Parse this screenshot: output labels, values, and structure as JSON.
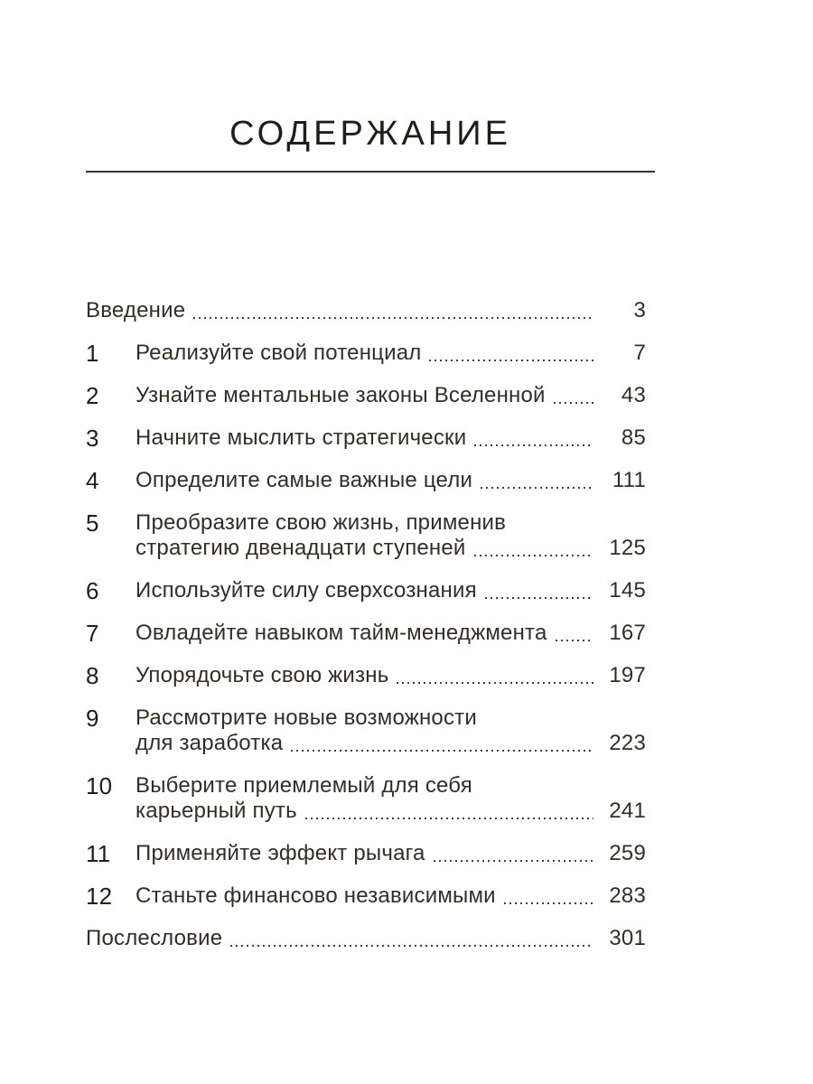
{
  "page": {
    "title": "СОДЕРЖАНИЕ"
  },
  "toc": {
    "entries": [
      {
        "num": "",
        "lines": [
          "Введение"
        ],
        "page": "3"
      },
      {
        "num": "1",
        "lines": [
          "Реализуйте свой потенциал"
        ],
        "page": "7"
      },
      {
        "num": "2",
        "lines": [
          "Узнайте ментальные законы Вселенной"
        ],
        "page": "43"
      },
      {
        "num": "3",
        "lines": [
          "Начните мыслить стратегически"
        ],
        "page": "85"
      },
      {
        "num": "4",
        "lines": [
          "Определите самые важные цели"
        ],
        "page": "111"
      },
      {
        "num": "5",
        "lines": [
          "Преобразите свою жизнь, применив",
          "стратегию двенадцати ступеней"
        ],
        "page": "125"
      },
      {
        "num": "6",
        "lines": [
          "Используйте силу сверхсознания"
        ],
        "page": "145"
      },
      {
        "num": "7",
        "lines": [
          "Овладейте навыком тайм-менеджмента"
        ],
        "page": "167"
      },
      {
        "num": "8",
        "lines": [
          "Упорядочьте свою жизнь"
        ],
        "page": "197"
      },
      {
        "num": "9",
        "lines": [
          "Рассмотрите новые возможности",
          "для заработка"
        ],
        "page": "223"
      },
      {
        "num": "10",
        "lines": [
          "Выберите приемлемый для себя",
          "карьерный путь"
        ],
        "page": "241"
      },
      {
        "num": "11",
        "lines": [
          "Применяйте эффект рычага"
        ],
        "page": "259"
      },
      {
        "num": "12",
        "lines": [
          "Станьте финансово независимыми"
        ],
        "page": "283"
      },
      {
        "num": "",
        "lines": [
          "Послесловие"
        ],
        "page": "301"
      }
    ]
  },
  "colors": {
    "background": "#ffffff",
    "text": "#332d27",
    "number": "#211d19",
    "rule": "#3a3530",
    "dots": "#46403a"
  }
}
